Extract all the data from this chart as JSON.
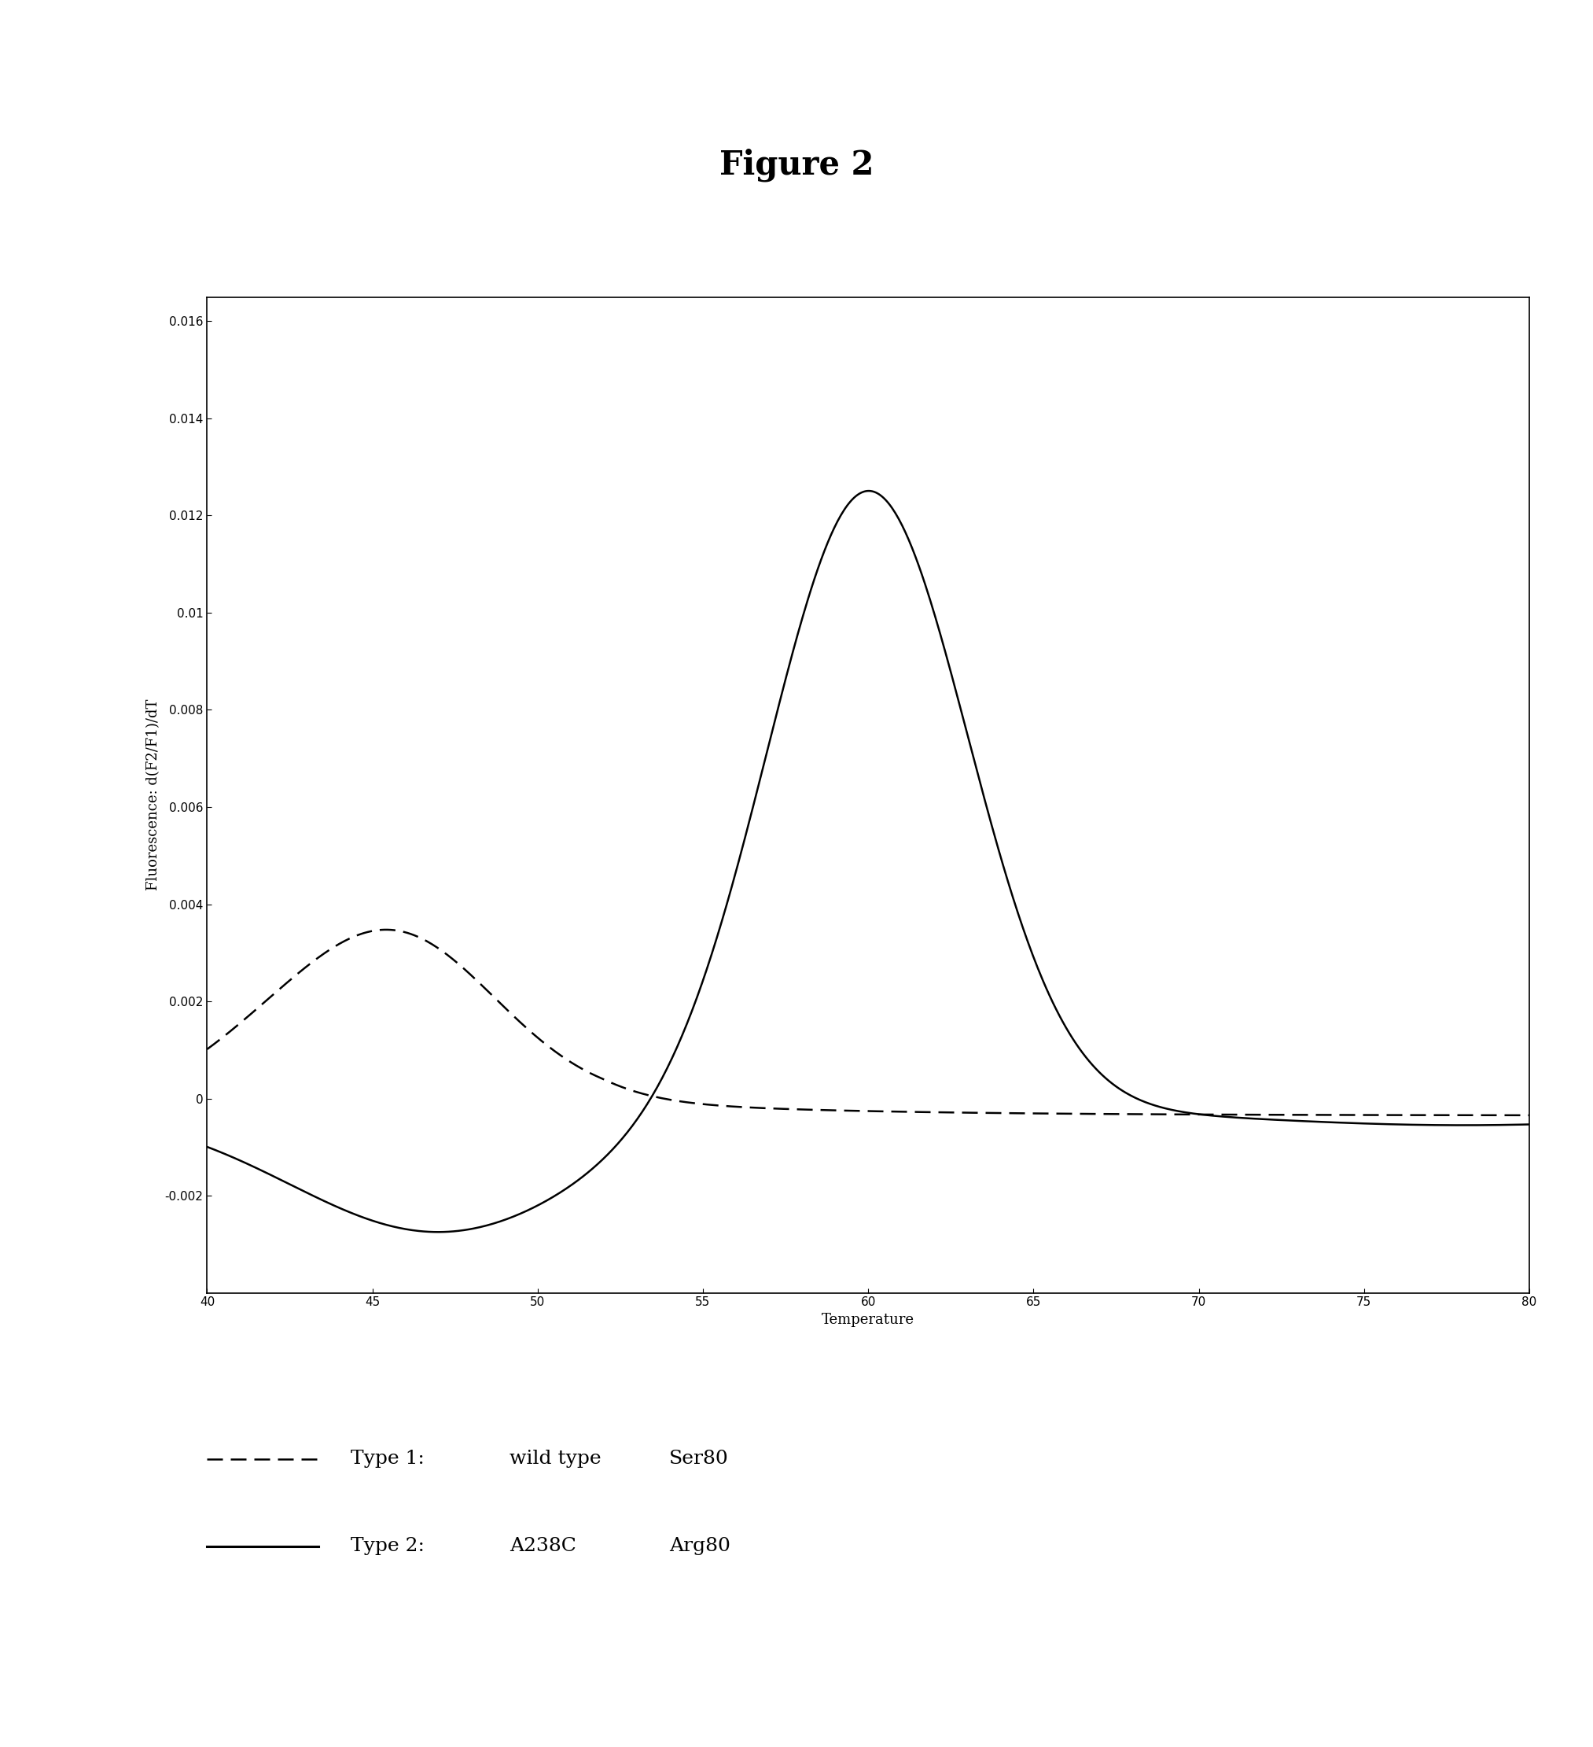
{
  "title": "Figure 2",
  "xlabel": "Temperature",
  "ylabel": "Fluorescence: d(F2/F1)/dT",
  "xlim": [
    40,
    80
  ],
  "ylim": [
    -0.004,
    0.016
  ],
  "xticks": [
    40,
    45,
    50,
    55,
    60,
    65,
    70,
    75,
    80
  ],
  "yticks": [
    -0.002,
    0,
    0.002,
    0.004,
    0.006,
    0.008,
    0.01,
    0.012,
    0.014,
    0.016
  ],
  "gray_border_color": "#b0b0b0",
  "plot_bg_color": "#ffffff",
  "title_fontsize": 30,
  "axis_label_fontsize": 13,
  "tick_fontsize": 11,
  "legend_fontsize": 18
}
